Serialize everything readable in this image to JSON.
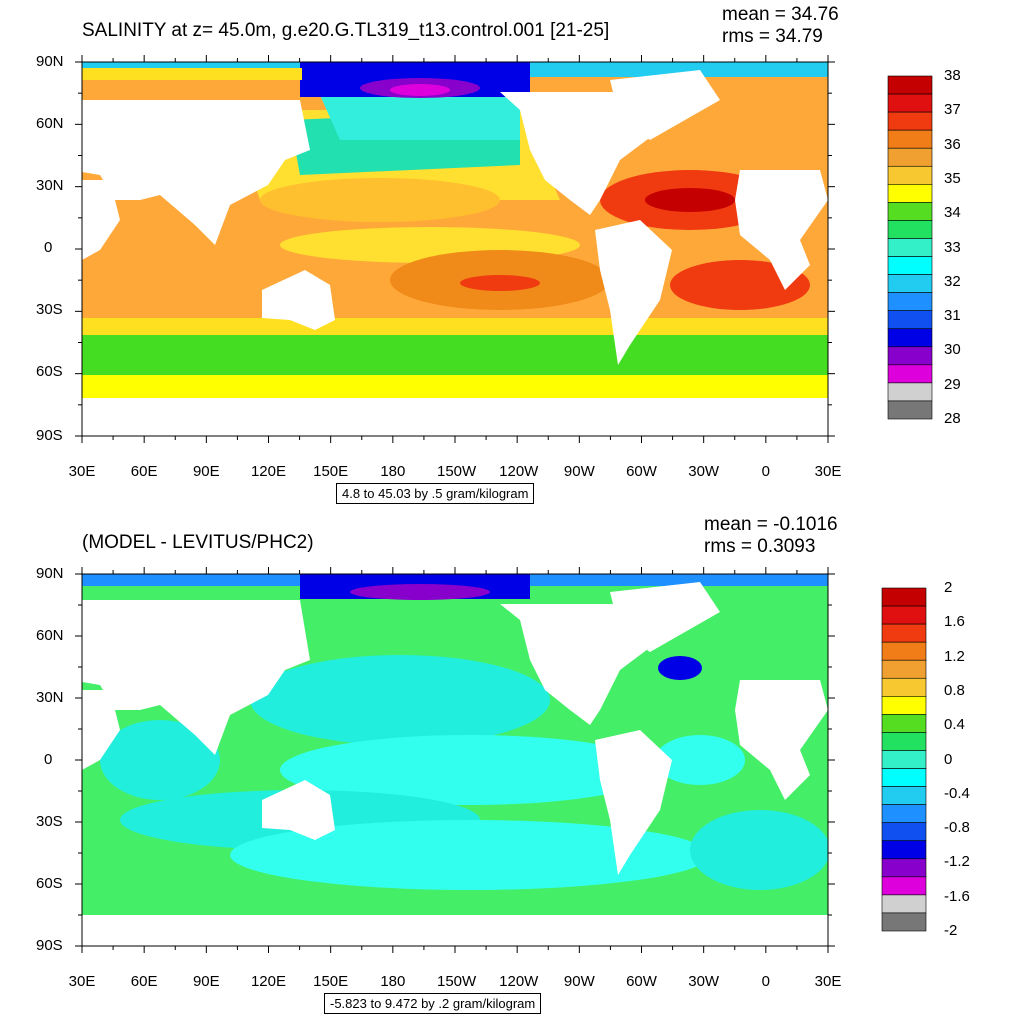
{
  "panels": [
    {
      "title": "SALINITY at z=  45.0m, g.e20.G.TL319_t13.control.001 [21-25]",
      "mean": "mean = 34.76",
      "rms": "rms = 34.79",
      "contour_info": "4.8 to 45.03 by .5 gram/kilogram",
      "colorbar": {
        "labels": [
          "38",
          "37",
          "36",
          "35",
          "34",
          "33",
          "32",
          "31",
          "30",
          "29",
          "28"
        ],
        "colors": [
          "#c40000",
          "#e01010",
          "#f03a10",
          "#f07d18",
          "#f0a030",
          "#f8c830",
          "#ffff00",
          "#55dd22",
          "#22e060",
          "#33f0c8",
          "#00ffff",
          "#22ccf0",
          "#1e90ff",
          "#1050f0",
          "#0000e6",
          "#8800cc",
          "#dd00dd",
          "#d0d0d0",
          "#777777"
        ]
      }
    },
    {
      "title": "(MODEL - LEVITUS/PHC2)",
      "mean": "mean = -0.1016",
      "rms": "rms = 0.3093",
      "contour_info": "-5.823 to 9.472 by .2 gram/kilogram",
      "colorbar": {
        "labels": [
          "2",
          "1.6",
          "1.2",
          "0.8",
          "0.4",
          "0",
          "-0.4",
          "-0.8",
          "-1.2",
          "-1.6",
          "-2"
        ],
        "colors": [
          "#c40000",
          "#e01010",
          "#f03a10",
          "#f07d18",
          "#f0a030",
          "#f8c830",
          "#ffff00",
          "#55dd22",
          "#22e060",
          "#33f0c8",
          "#00ffff",
          "#22ccf0",
          "#1e90ff",
          "#1050f0",
          "#0000e6",
          "#8800cc",
          "#dd00dd",
          "#d0d0d0",
          "#777777"
        ]
      }
    }
  ],
  "lat_labels": [
    "90N",
    "60N",
    "30N",
    "0",
    "30S",
    "60S",
    "90S"
  ],
  "lon_labels": [
    "30E",
    "60E",
    "90E",
    "120E",
    "150E",
    "180",
    "150W",
    "120W",
    "90W",
    "60W",
    "30W",
    "0",
    "30E"
  ]
}
